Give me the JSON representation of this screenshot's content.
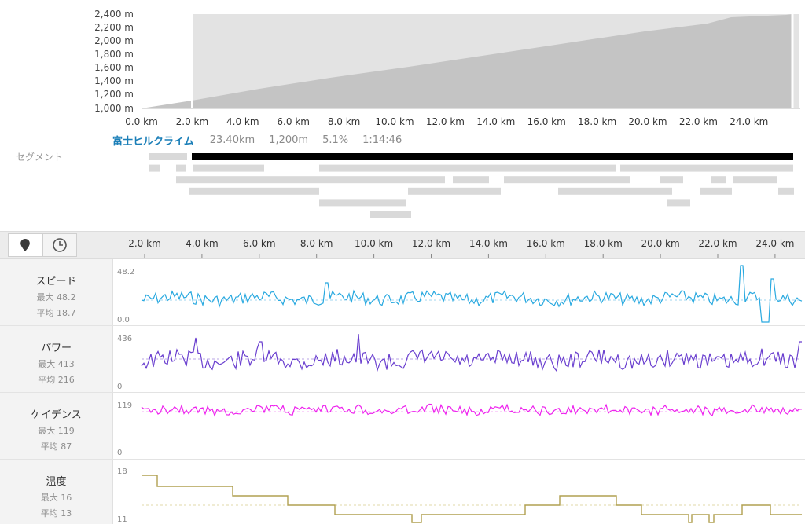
{
  "elevation": {
    "y_ticks": [
      "2,400 m",
      "2,200 m",
      "2,000 m",
      "1,800 m",
      "1,600 m",
      "1,400 m",
      "1,200 m",
      "1,000 m"
    ],
    "x_ticks": [
      "0.0 km",
      "2.0 km",
      "4.0 km",
      "6.0 km",
      "8.0 km",
      "10.0 km",
      "12.0 km",
      "14.0 km",
      "16.0 km",
      "18.0 km",
      "20.0 km",
      "22.0 km",
      "24.0 km"
    ],
    "colors": {
      "fill": "#c4c4c4",
      "selection": "#e3e3e3"
    }
  },
  "segment": {
    "name": "富士ヒルクライム",
    "distance": "23.40km",
    "elevation": "1,200m",
    "grade": "5.1%",
    "time": "1:14:46"
  },
  "segments_label": "セグメント",
  "toolbar": {
    "distance_icon": "map-pin-icon",
    "time_icon": "clock-icon",
    "x_ticks": [
      "2.0 km",
      "4.0 km",
      "6.0 km",
      "8.0 km",
      "10.0 km",
      "12.0 km",
      "14.0 km",
      "16.0 km",
      "18.0 km",
      "20.0 km",
      "22.0 km",
      "24.0 km"
    ]
  },
  "metrics": {
    "speed": {
      "name": "スピード",
      "max": "最大 48.2",
      "avg": "平均 18.7",
      "top": "48.2",
      "bottom": "0.0",
      "color": "#29a9e0"
    },
    "power": {
      "name": "パワー",
      "max": "最大 413",
      "avg": "平均 216",
      "top": "436",
      "bottom": "0",
      "color": "#6a3fcf"
    },
    "cadence": {
      "name": "ケイデンス",
      "max": "最大 119",
      "avg": "平均 87",
      "top": "119",
      "bottom": "0",
      "color": "#ee22ee"
    },
    "temperature": {
      "name": "温度",
      "max": "最大 16",
      "avg": "平均 13",
      "top": "18",
      "bottom": "11",
      "color": "#b0a050"
    }
  }
}
